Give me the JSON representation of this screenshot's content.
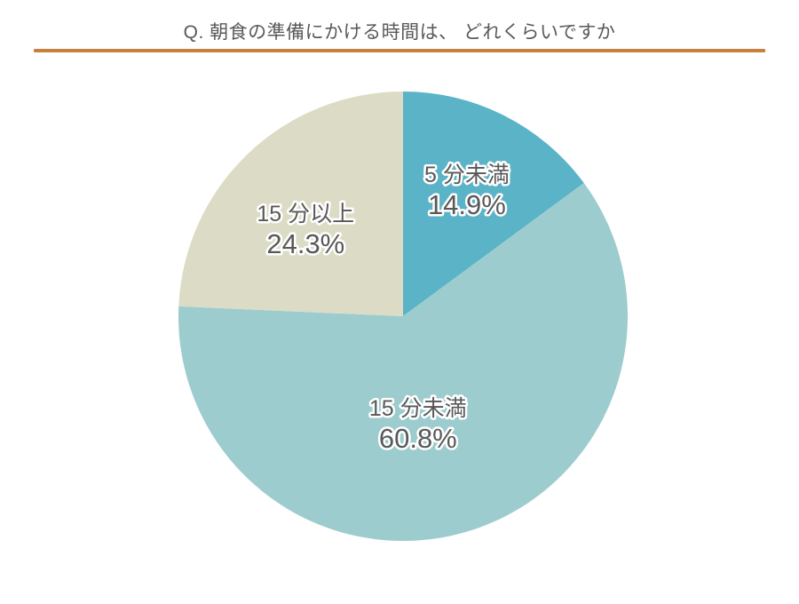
{
  "header": {
    "title": "Q. 朝食の準備にかける時間は、 どれくらいですか",
    "title_color": "#595959",
    "divider_color": "#c8803f"
  },
  "chart_data": {
    "type": "pie",
    "title": "Q. 朝食の準備にかける時間は、 どれくらいですか",
    "start_angle_deg": 0,
    "direction": "clockwise",
    "categories": [
      "5 分未満",
      "15 分未満",
      "15 分以上"
    ],
    "values": [
      14.9,
      60.8,
      24.3
    ],
    "slices": [
      {
        "label": "5 分未満",
        "value_pct": 14.9,
        "display_value": "14.9%",
        "color": "#5bb3c8"
      },
      {
        "label": "15 分未満",
        "value_pct": 60.8,
        "display_value": "60.8%",
        "color": "#9cccce"
      },
      {
        "label": "15 分以上",
        "value_pct": 24.3,
        "display_value": "24.3%",
        "color": "#dcdcc6"
      }
    ],
    "legend": "none",
    "labels_on_slices": true,
    "label_color": "#595959",
    "label_outline_color": "#ffffff",
    "background": "#ffffff"
  }
}
